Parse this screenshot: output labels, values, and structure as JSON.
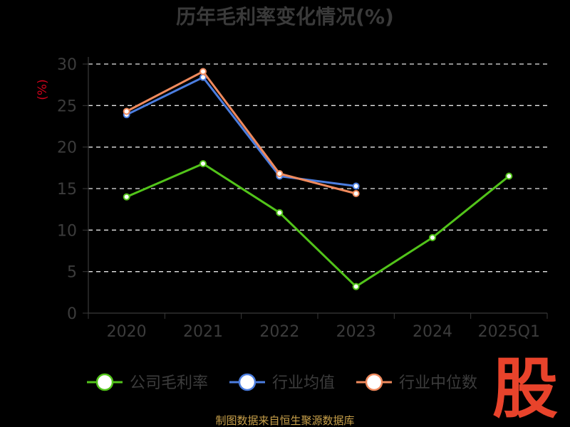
{
  "chart_data": {
    "type": "line",
    "title": "历年毛利率变化情况(%)",
    "ylabel": "(%)",
    "xlabel": "",
    "categories": [
      "2020",
      "2021",
      "2022",
      "2023",
      "2024",
      "2025Q1"
    ],
    "ylim": [
      0,
      30
    ],
    "yticks": [
      0,
      5,
      10,
      15,
      20,
      25,
      30
    ],
    "grid": "horizontal dashed",
    "legend_position": "bottom",
    "series": [
      {
        "name": "公司毛利率",
        "color": "#52c41a",
        "values": [
          14.0,
          18.0,
          12.1,
          3.2,
          9.1,
          16.5
        ]
      },
      {
        "name": "行业均值",
        "color": "#4c7ee0",
        "values": [
          23.9,
          28.4,
          16.5,
          15.3,
          null,
          null
        ]
      },
      {
        "name": "行业中位数",
        "color": "#f08a5d",
        "values": [
          24.3,
          29.1,
          16.8,
          14.4,
          null,
          null
        ]
      }
    ]
  },
  "footer": {
    "source": "制图数据来自恒生聚源数据库"
  },
  "logo": {
    "text": "股"
  }
}
